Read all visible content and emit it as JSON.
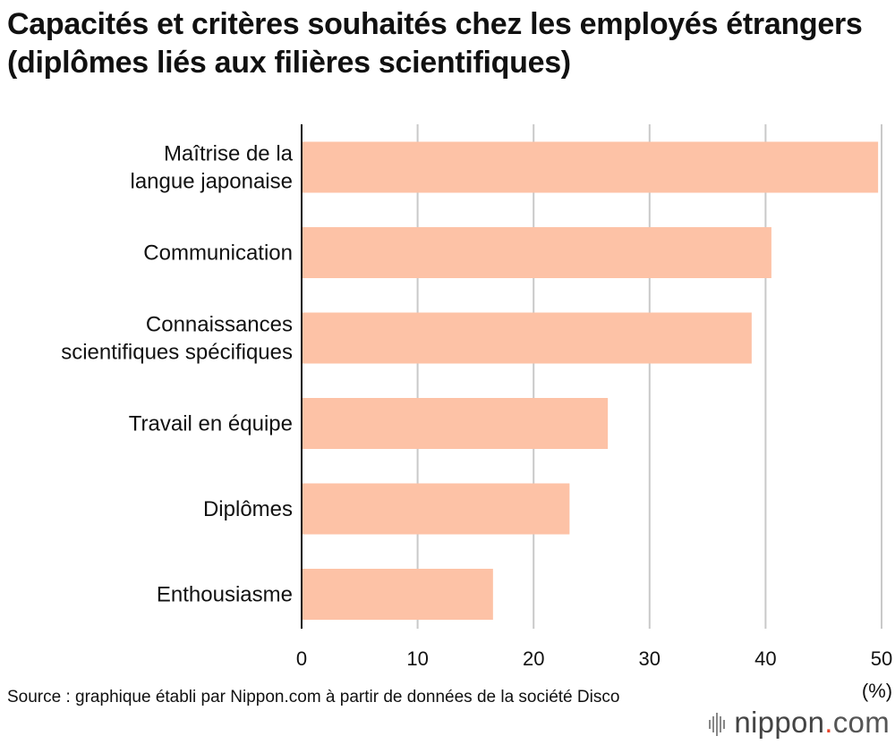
{
  "chart_data": {
    "type": "bar",
    "orientation": "horizontal",
    "title": "Capacités et critères souhaités chez les employés étrangers (diplômes liés aux filières scientifiques)",
    "categories": [
      [
        "Maîtrise de la",
        "langue japonaise"
      ],
      [
        "Communication"
      ],
      [
        "Connaissances",
        "scientifiques spécifiques"
      ],
      [
        "Travail en équipe"
      ],
      [
        "Diplômes"
      ],
      [
        "Enthousiasme"
      ]
    ],
    "values": [
      49.7,
      40.5,
      38.8,
      26.4,
      23.1,
      16.5
    ],
    "xlim": [
      0,
      50
    ],
    "xticks": [
      0,
      10,
      20,
      30,
      40,
      50
    ],
    "xlabel": "(%)",
    "grid": true,
    "bar_color": "#fdc2a6"
  },
  "source": "Source : graphique établi par Nippon.com à partir de données de la société Disco",
  "logo": {
    "name": "nippon",
    "dot": ".",
    "tld": "com"
  }
}
